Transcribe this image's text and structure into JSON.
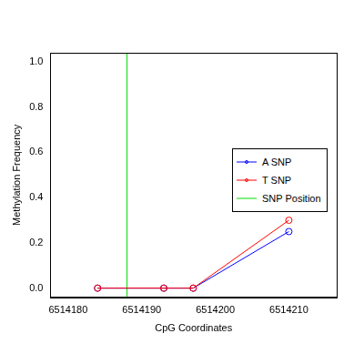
{
  "chart_data": {
    "type": "line",
    "x_label": "CpG Coordinates",
    "y_label": "Methylation Frequency",
    "x": [
      6514184,
      6514193,
      6514197,
      6514210
    ],
    "series": [
      {
        "name": "A SNP",
        "color": "#0000FF",
        "marker": "circle",
        "values": [
          0,
          0,
          0,
          0.25
        ]
      },
      {
        "name": "T SNP",
        "color": "#FF0000",
        "marker": "circle",
        "values": [
          0,
          0,
          0,
          0.3
        ]
      },
      {
        "name": "SNP Position",
        "color": "#00DD00",
        "type": "vline",
        "x": 6514188
      }
    ],
    "xlim": [
      6514177.6,
      6514216.5
    ],
    "xticks": [
      6514180,
      6514190,
      6514200,
      6514210
    ],
    "ylim": [
      -0.04,
      1.04
    ],
    "yticks": [
      {
        "value": 0,
        "label": "0.0"
      },
      0.2,
      0.4,
      0.6,
      0.8,
      {
        "value": 1,
        "label": "1.0"
      }
    ],
    "grid": false,
    "legend": "right"
  }
}
